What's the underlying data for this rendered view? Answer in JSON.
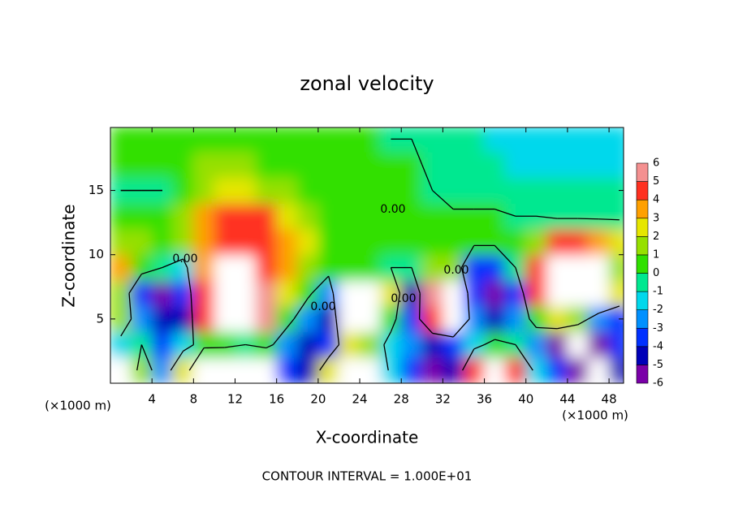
{
  "chart_data": {
    "type": "contour",
    "title": "zonal velocity",
    "xlabel": "X-coordinate",
    "ylabel": "Z-coordinate",
    "xunit": "(×1000 m)",
    "yunit": "(×1000 m)",
    "footer": "CONTOUR INTERVAL = 1.000E+01",
    "contour_label": "0.00",
    "xlim": [
      0,
      49.4
    ],
    "ylim": [
      0,
      19.9
    ],
    "xticks": [
      4,
      8,
      12,
      16,
      20,
      24,
      28,
      32,
      36,
      40,
      44,
      48
    ],
    "yticks": [
      5,
      10,
      15
    ],
    "x": [
      1,
      3,
      5,
      7,
      9,
      11,
      13,
      15,
      17,
      19,
      21,
      23,
      25,
      27,
      29,
      31,
      33,
      35,
      37,
      39,
      41,
      43,
      45,
      47,
      49
    ],
    "y": [
      1,
      3,
      5,
      7,
      9,
      11,
      13,
      15,
      17,
      19
    ],
    "z": [
      [
        -7,
        2,
        -2,
        3,
        -7,
        -8,
        -8,
        -7,
        -3,
        -4,
        3,
        7,
        7,
        -1,
        -3,
        -5,
        -4,
        5,
        7,
        5,
        -1,
        -3,
        -5,
        -7,
        -4
      ],
      [
        -1,
        0,
        -3,
        -1,
        1,
        1,
        0,
        1,
        -2,
        -4,
        -3,
        3,
        2,
        -1,
        -2,
        -4,
        -3,
        -1,
        1,
        0,
        -2,
        -5,
        -7,
        -5,
        -3
      ],
      [
        2,
        -2,
        -4,
        -4,
        5,
        7,
        7,
        6,
        1,
        -2,
        -4,
        7,
        7,
        1,
        -3,
        5,
        7,
        -2,
        -4,
        -2,
        1,
        3,
        2,
        -2,
        -3
      ],
      [
        2,
        -3,
        -5,
        -3,
        5,
        7,
        7,
        6,
        3,
        0.5,
        -2,
        7,
        7,
        3,
        -4,
        6,
        7,
        -3,
        -6,
        -3,
        5,
        7,
        7,
        7,
        3
      ],
      [
        4,
        1,
        0,
        -1,
        4,
        7,
        7,
        5,
        4,
        2,
        1,
        0.5,
        0.3,
        0,
        0,
        2,
        2,
        -3,
        -3,
        0,
        5,
        7,
        7,
        7,
        2
      ],
      [
        2,
        1.5,
        1,
        2,
        3.5,
        5,
        5,
        5,
        4,
        2.5,
        1,
        0.5,
        0.5,
        0.5,
        0.5,
        0.5,
        0.5,
        0.5,
        0.5,
        0.5,
        2,
        5,
        5,
        4,
        3
      ],
      [
        0.5,
        0.5,
        1,
        2,
        4,
        5,
        5,
        4.5,
        3,
        1.5,
        1,
        0.5,
        0.5,
        0.5,
        0.5,
        0.3,
        0.3,
        0.3,
        0.3,
        0,
        0,
        -0.5,
        -0.5,
        -0.5,
        -0.5
      ],
      [
        0,
        0,
        0,
        1,
        2,
        3,
        3,
        2,
        1.5,
        0.5,
        0.5,
        0.5,
        0.5,
        0.5,
        0.5,
        0,
        -0.8,
        -0.8,
        -0.8,
        -0.8,
        -0.8,
        -0.8,
        -0.8,
        -0.8,
        -0.8
      ],
      [
        1,
        1,
        1,
        1,
        1.5,
        1.5,
        1.5,
        1,
        1,
        1,
        0.3,
        0.3,
        0.3,
        0.3,
        0.3,
        -0.3,
        -0.3,
        -0.3,
        -0.3,
        -1,
        -1,
        -1,
        -1,
        -1,
        -1
      ],
      [
        0.8,
        0.8,
        0.8,
        0.8,
        0.8,
        0.8,
        0.8,
        0.8,
        0.5,
        0.5,
        0.5,
        0.5,
        0.5,
        0,
        0,
        0,
        0,
        0,
        -1,
        -1,
        -1,
        -1,
        -1,
        -1,
        -1
      ]
    ],
    "colorbar": {
      "levels": [
        -6,
        -5,
        -4,
        -3,
        -2,
        -1,
        0,
        1,
        2,
        3,
        4,
        5,
        6
      ],
      "colors": [
        "#7a00a8",
        "#0000b8",
        "#0030ff",
        "#0090ff",
        "#00d8ec",
        "#00e890",
        "#30e000",
        "#96e000",
        "#e6e600",
        "#ffa000",
        "#ff3020",
        "#f49090"
      ]
    }
  }
}
